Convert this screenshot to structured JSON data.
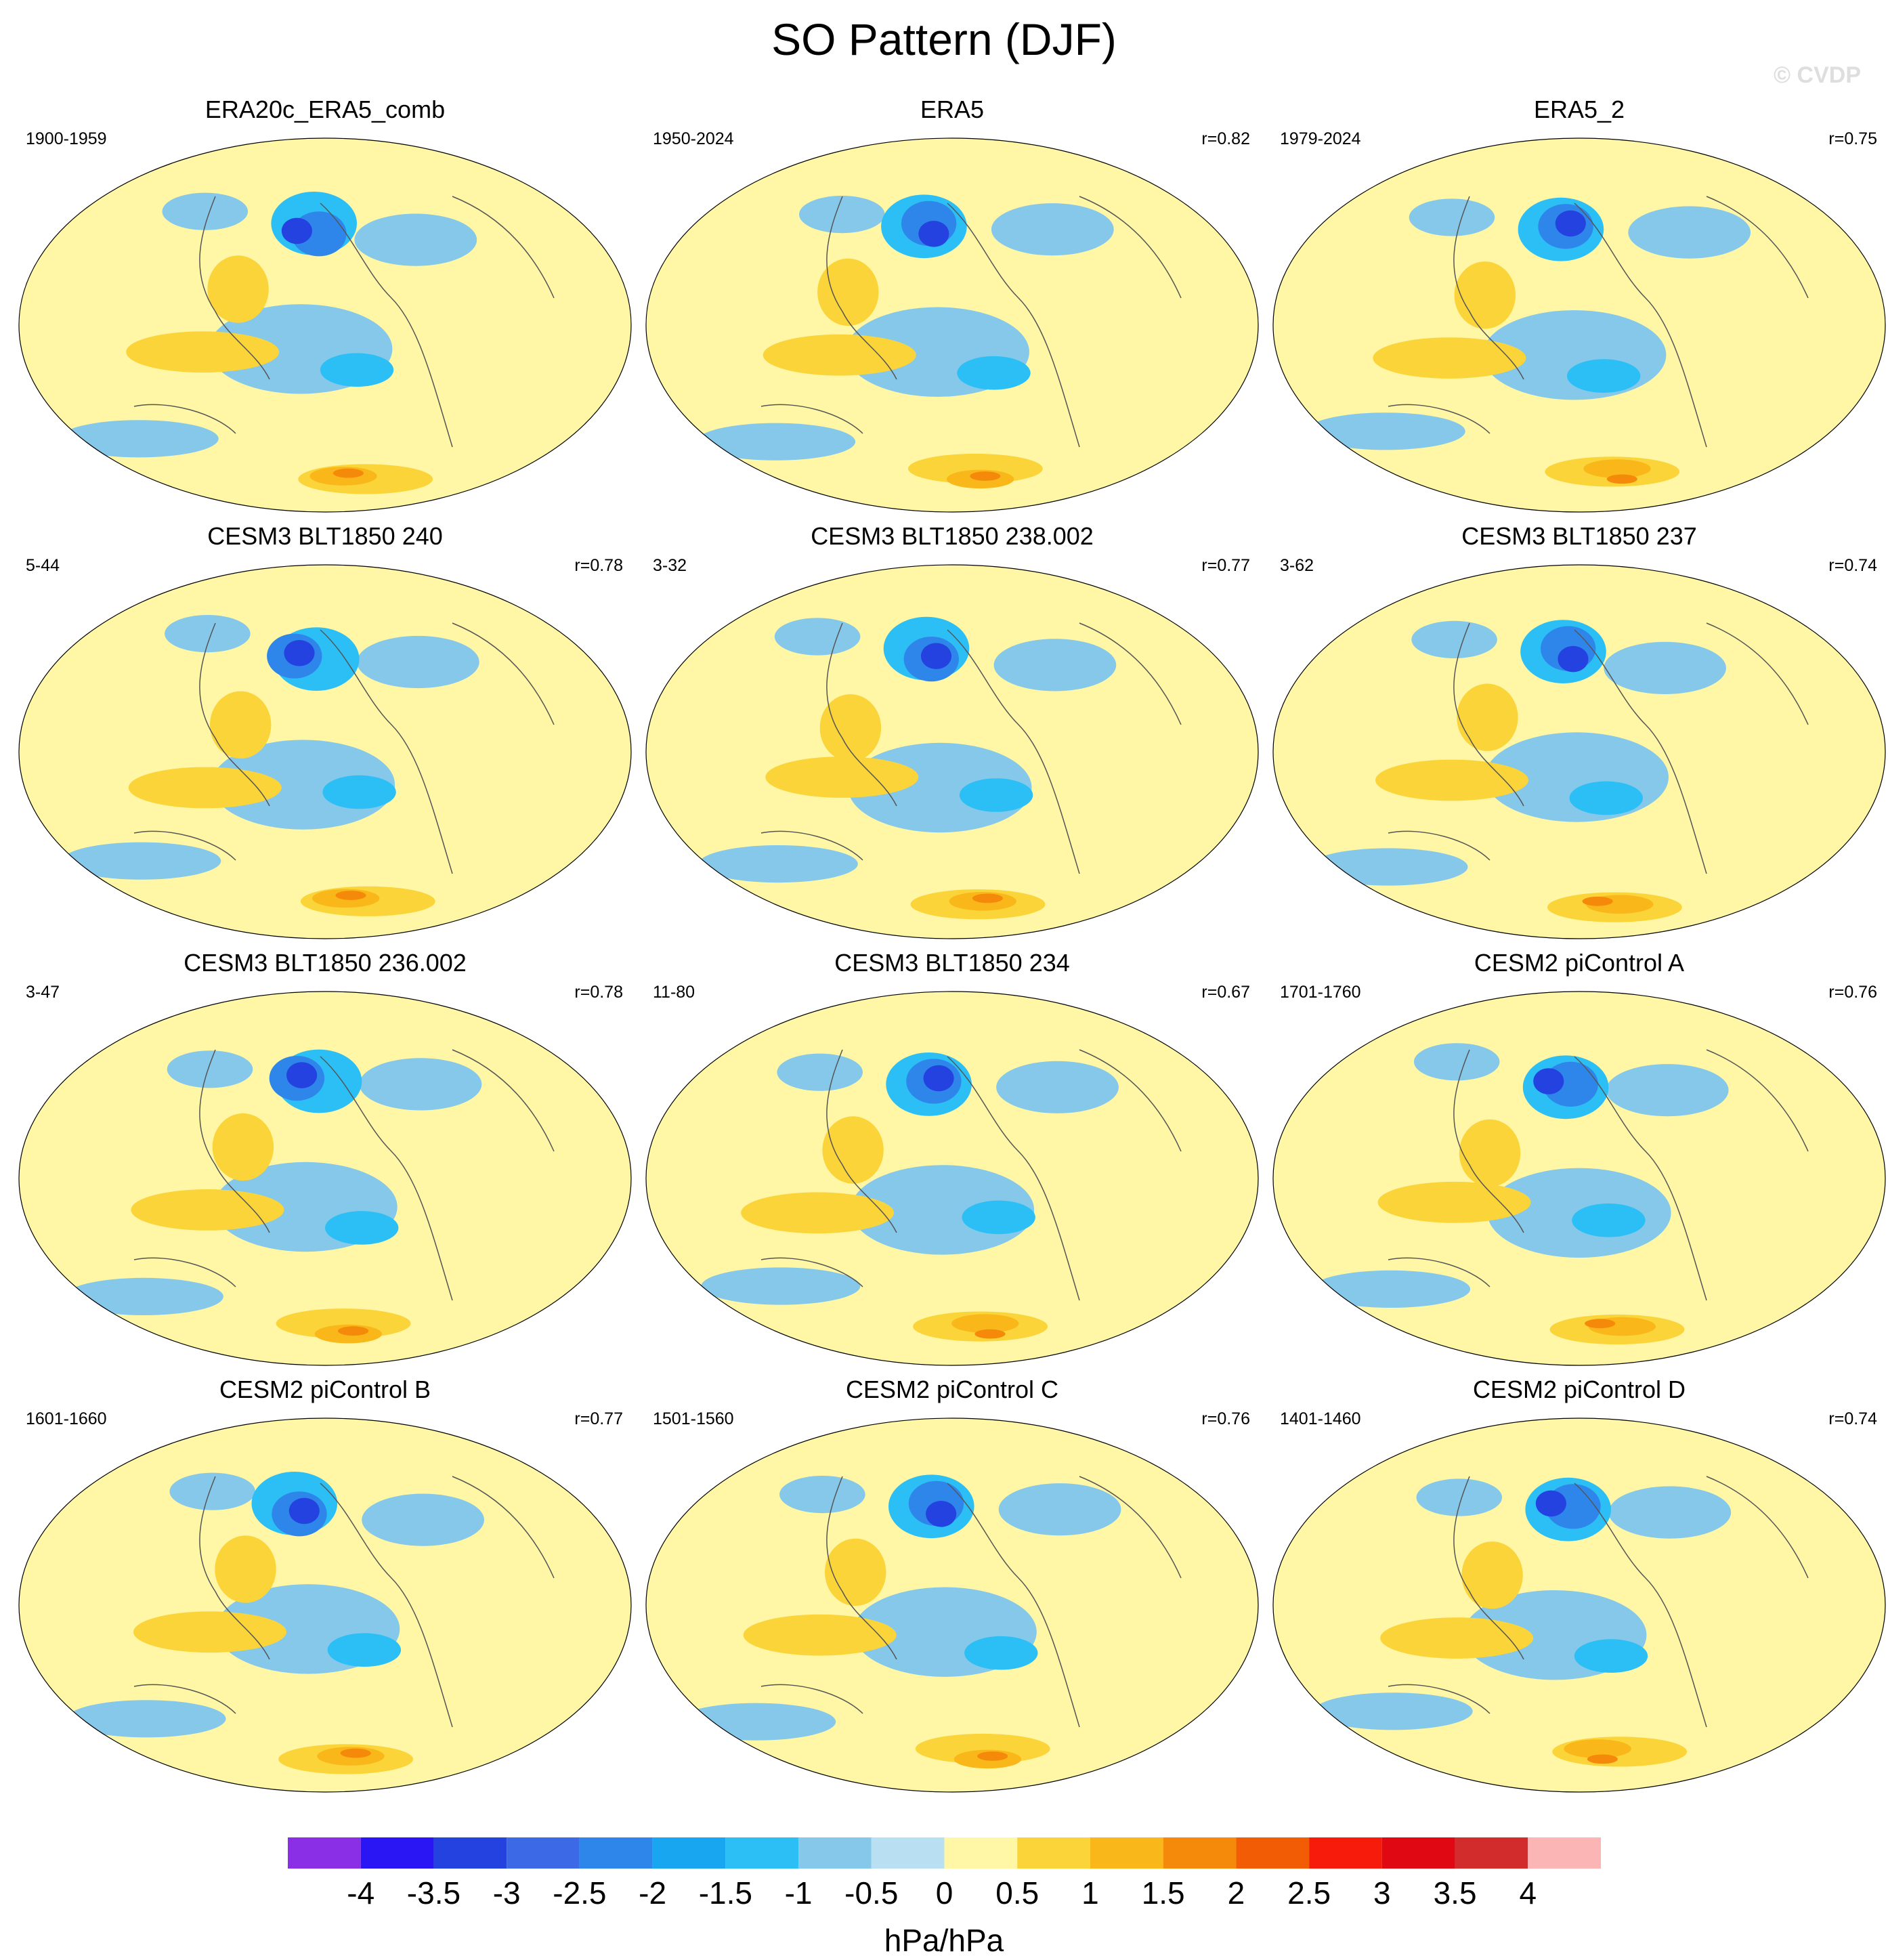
{
  "figure": {
    "title": "SO Pattern (DJF)",
    "watermark": "© CVDP"
  },
  "chart_data": {
    "type": "contour-map",
    "projection": "Robinson-like global, Pacific-centered",
    "variable": "sea level pressure regression onto Southern Oscillation index",
    "units": "hPa/hPa",
    "colorbar": {
      "levels": [
        -4,
        -3.5,
        -3,
        -2.5,
        -2,
        -1.5,
        -1,
        -0.5,
        0,
        0.5,
        1,
        1.5,
        2,
        2.5,
        3,
        3.5,
        4
      ],
      "tick_labels": [
        "-4",
        "-3.5",
        "-3",
        "-2.5",
        "-2",
        "-1.5",
        "-1",
        "-0.5",
        "0",
        "0.5",
        "1",
        "1.5",
        "2",
        "2.5",
        "3",
        "3.5",
        "4"
      ],
      "colors": [
        "#8b2fe6",
        "#2a16f5",
        "#2442e0",
        "#3c6ae6",
        "#2f86ea",
        "#19a6f0",
        "#2bbff5",
        "#85c8ea",
        "#b8e0f2",
        "#fff7a6",
        "#fbd43a",
        "#f9b719",
        "#f58a0a",
        "#f25c05",
        "#f61b0b",
        "#e00812",
        "#d22c2c",
        "#fbb5b5"
      ]
    },
    "panels": [
      {
        "title": "ERA20c_ERA5_comb",
        "years": "1900-1959",
        "r": ""
      },
      {
        "title": "ERA5",
        "years": "1950-2024",
        "r": "r=0.82"
      },
      {
        "title": "ERA5_2",
        "years": "1979-2024",
        "r": "r=0.75"
      },
      {
        "title": "CESM3 BLT1850 240",
        "years": "5-44",
        "r": "r=0.78"
      },
      {
        "title": "CESM3 BLT1850 238.002",
        "years": "3-32",
        "r": "r=0.77"
      },
      {
        "title": "CESM3 BLT1850 237",
        "years": "3-62",
        "r": "r=0.74"
      },
      {
        "title": "CESM3 BLT1850 236.002",
        "years": "3-47",
        "r": "r=0.78"
      },
      {
        "title": "CESM3 BLT1850 234",
        "years": "11-80",
        "r": "r=0.67"
      },
      {
        "title": "CESM2 piControl A",
        "years": "1701-1760",
        "r": "r=0.76"
      },
      {
        "title": "CESM2 piControl B",
        "years": "1601-1660",
        "r": "r=0.77"
      },
      {
        "title": "CESM2 piControl C",
        "years": "1501-1560",
        "r": "r=0.76"
      },
      {
        "title": "CESM2 piControl D",
        "years": "1401-1460",
        "r": "r=0.74"
      }
    ]
  }
}
